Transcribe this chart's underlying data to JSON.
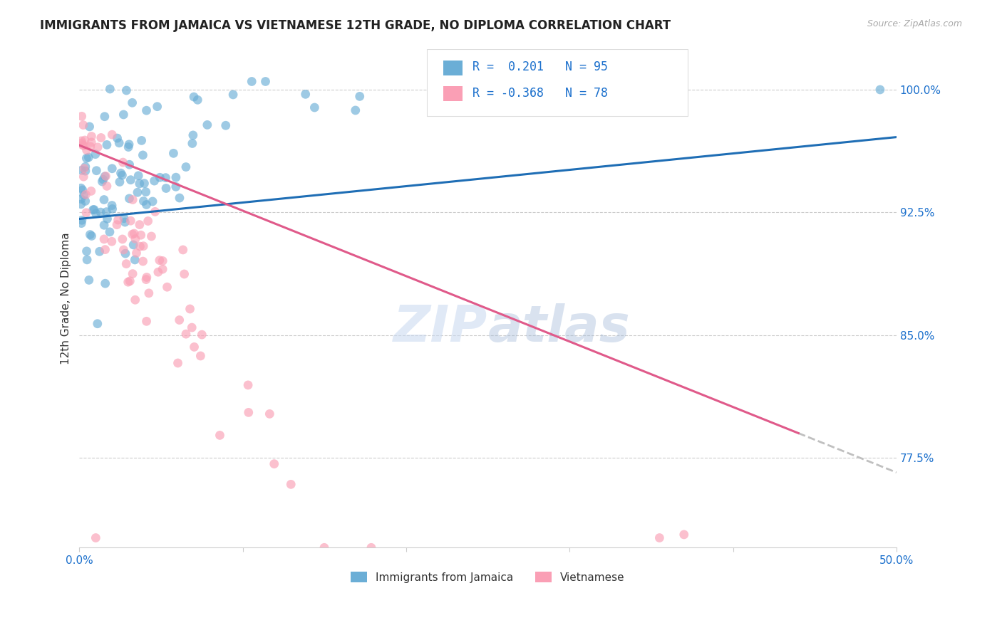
{
  "title": "IMMIGRANTS FROM JAMAICA VS VIETNAMESE 12TH GRADE, NO DIPLOMA CORRELATION CHART",
  "source": "Source: ZipAtlas.com",
  "ylabel": "12th Grade, No Diploma",
  "ytick_labels": [
    "100.0%",
    "92.5%",
    "85.0%",
    "77.5%"
  ],
  "ytick_values": [
    1.0,
    0.925,
    0.85,
    0.775
  ],
  "xlim": [
    0.0,
    0.5
  ],
  "ylim": [
    0.72,
    1.025
  ],
  "legend_labels": [
    "Immigrants from Jamaica",
    "Vietnamese"
  ],
  "color_blue": "#6baed6",
  "color_pink": "#fa9fb5",
  "trendline_blue_color": "#1f6eb5",
  "trendline_pink_color": "#e05a8a",
  "trendline_dashed_color": "#c0c0c0",
  "watermark_zip_color": "#c8d8f0",
  "watermark_atlas_color": "#a0b8d8"
}
